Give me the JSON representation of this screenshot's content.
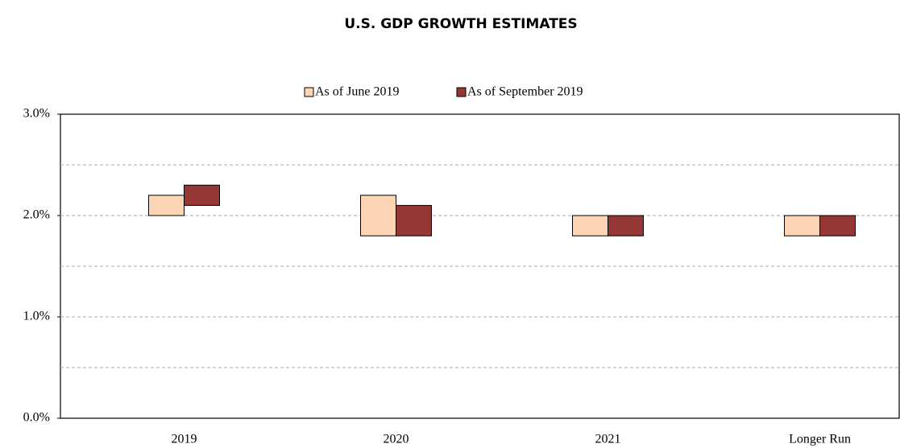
{
  "chart_data": {
    "type": "floating_bar",
    "title": "U.S. GDP GROWTH ESTIMATES",
    "categories": [
      "2019",
      "2020",
      "2021",
      "Longer Run"
    ],
    "series": [
      {
        "name": "As of June 2019",
        "color": "#fcd5b5",
        "low": [
          2.0,
          1.8,
          1.8,
          1.8
        ],
        "high": [
          2.2,
          2.2,
          2.0,
          2.0
        ]
      },
      {
        "name": "As of September 2019",
        "color": "#953735",
        "low": [
          2.1,
          1.8,
          1.8,
          1.8
        ],
        "high": [
          2.3,
          2.1,
          2.0,
          2.0
        ]
      }
    ],
    "ylim": [
      0,
      3
    ],
    "yticks": [
      {
        "value": 0,
        "label": "0.0%"
      },
      {
        "value": 1,
        "label": "1.0%"
      },
      {
        "value": 2,
        "label": "2.0%"
      },
      {
        "value": 3,
        "label": "3.0%"
      }
    ],
    "grid_lines": [
      0.5,
      1,
      1.5,
      2,
      2.5
    ],
    "legend": "top"
  }
}
